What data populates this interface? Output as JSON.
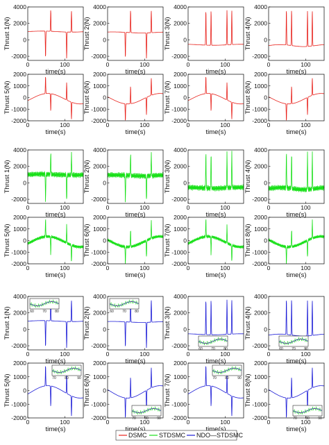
{
  "figure": {
    "xlabel": "time(s)",
    "legend": {
      "placement": "bottom-center",
      "entries": [
        {
          "label": "DSMC",
          "color": "#e8211b"
        },
        {
          "label": "STDSMC",
          "color": "#19e019"
        },
        {
          "label": "NDO—STDSMC",
          "color": "#1a1ad6"
        }
      ]
    },
    "rows": [
      {
        "method": "DSMC",
        "color": "#e8211b",
        "thrusters": [
          1,
          2,
          3,
          4
        ]
      },
      {
        "method": "DSMC",
        "color": "#e8211b",
        "thrusters": [
          5,
          6,
          7,
          8
        ]
      },
      {
        "method": "STDSMC",
        "color": "#19e019",
        "thrusters": [
          1,
          2,
          3,
          4
        ]
      },
      {
        "method": "STDSMC",
        "color": "#19e019",
        "thrusters": [
          5,
          6,
          7,
          8
        ]
      },
      {
        "method": "NDO—STDSMC",
        "color": "#1a1ad6",
        "thrusters": [
          1,
          2,
          3,
          4
        ]
      },
      {
        "method": "NDO—STDSMC",
        "color": "#1a1ad6",
        "thrusters": [
          5,
          6,
          7,
          8
        ]
      }
    ],
    "ylabels": [
      "Thrust 1(N)",
      "Thrust 2(N)",
      "Thrust 3(N)",
      "Thrust 4(N)",
      "Thrust 5(N)",
      "Thrust 6(N)",
      "Thrust 7(N)",
      "Thrust 8(N)"
    ],
    "xticks": [
      0,
      100
    ],
    "xlim": [
      0,
      150
    ],
    "yticks_1to4": [
      "4000",
      "2000",
      "0",
      "-2000"
    ],
    "ylim_1to4": [
      -2500,
      4000
    ],
    "yticks_5to8": [
      "2000",
      "1000",
      "0",
      "-1000",
      "-2000"
    ],
    "ylim_5to8": [
      -2000,
      2000
    ],
    "ndo_inset_1to4_ticks": [
      "60",
      "70",
      "80"
    ],
    "ndo_inset_5to8_ticks": [
      "70",
      "80",
      "90"
    ]
  },
  "chart_data": {
    "type": "line",
    "xlabel": "time(s)",
    "xlim": [
      0,
      150
    ],
    "series_names": [
      "DSMC",
      "STDSMC",
      "NDO—STDSMC"
    ],
    "thrusters_1to4": {
      "ylim": [
        -2500,
        4000
      ],
      "baseline_approx": [
        1000,
        900,
        -600,
        -600
      ],
      "spikes_at_s": [
        48,
        62,
        105,
        118
      ],
      "spike_peak_approx": 3800,
      "spike_trough_approx": -2200
    },
    "thrusters_5to8": {
      "ylim": [
        -2000,
        2000
      ],
      "spikes_at_s": [
        48,
        62,
        105,
        118
      ],
      "spike_peak_approx": 1600,
      "spike_trough_approx": -1600,
      "bump_peak_approx": 500
    }
  }
}
